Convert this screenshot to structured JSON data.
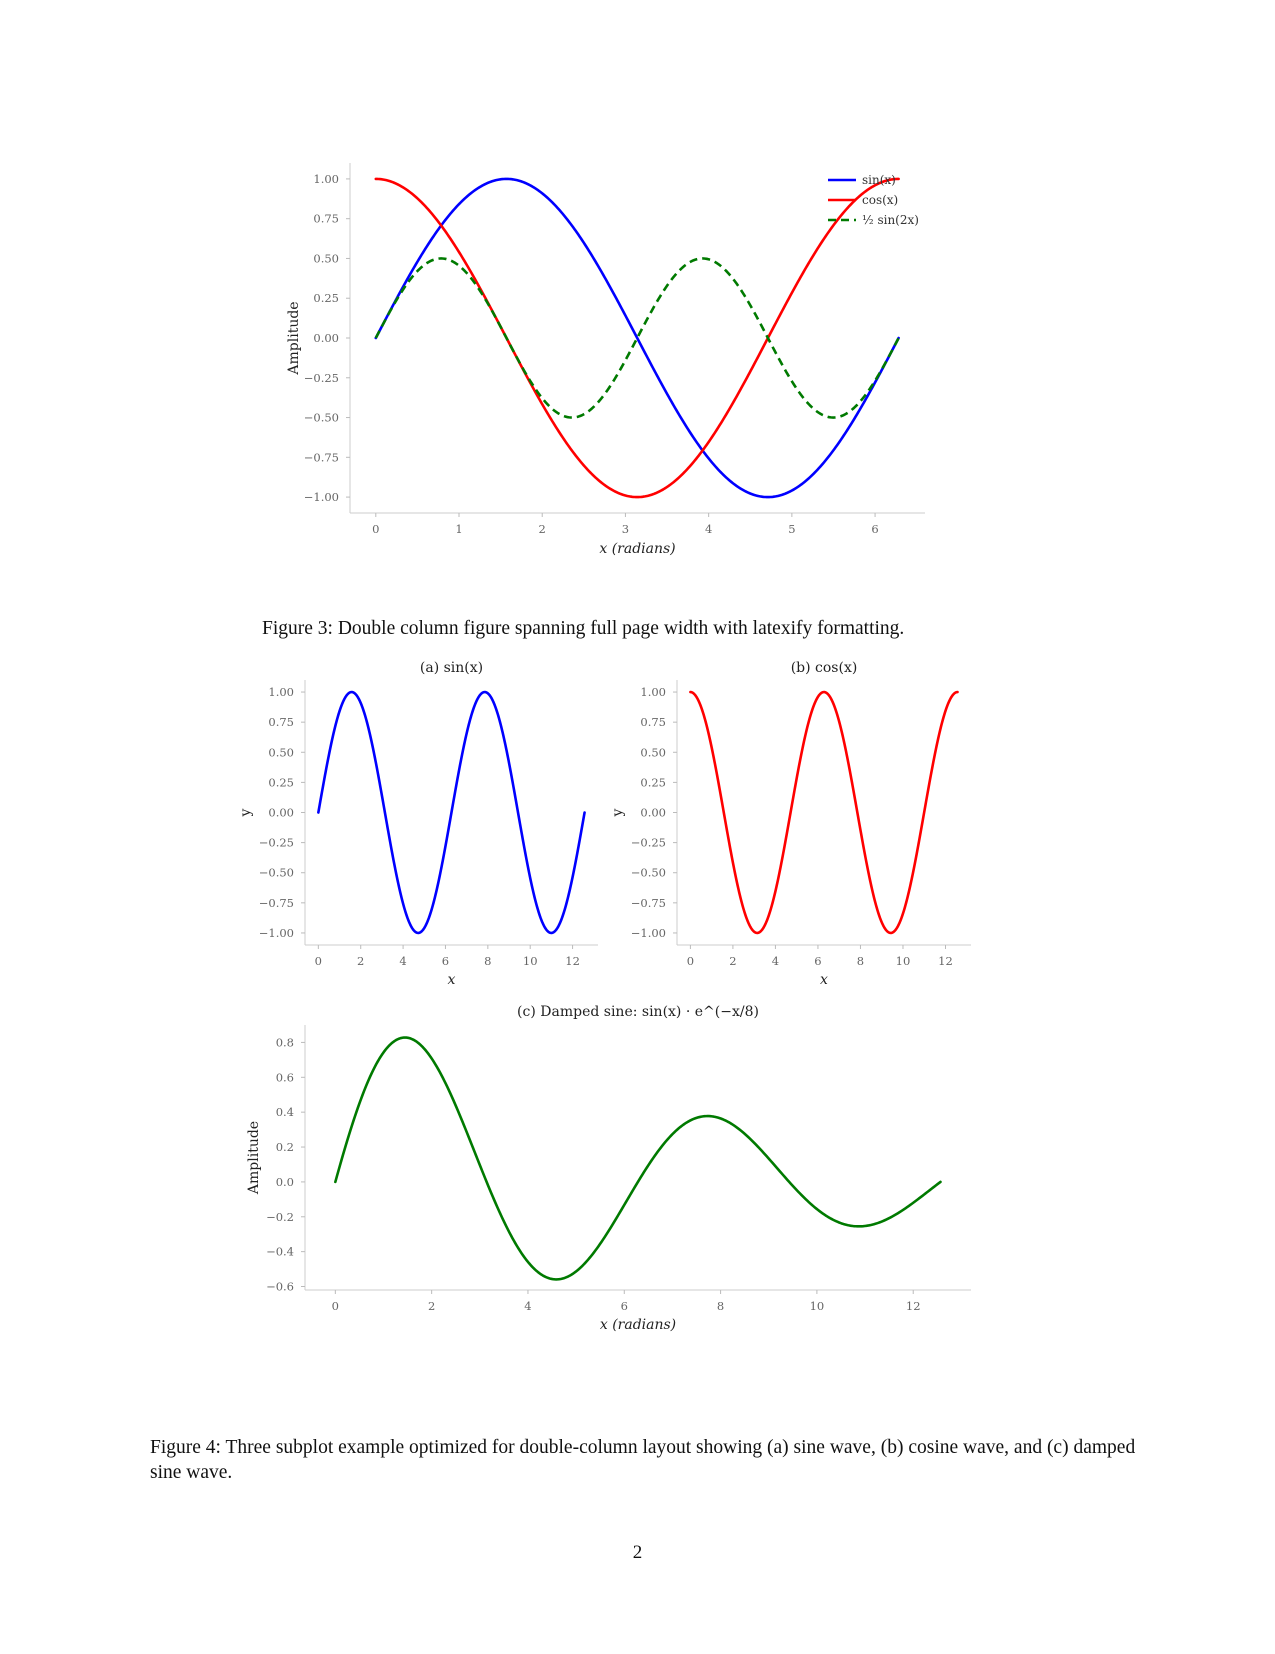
{
  "figures": [
    {
      "caption": "Figure 3: Double column figure spanning full page width with latexify formatting."
    },
    {
      "caption": "Figure 4: Three subplot example optimized for double-column layout showing (a) sine wave, (b) cosine wave, and (c) damped sine wave."
    }
  ],
  "page_number": "2",
  "chart_data": [
    {
      "type": "line",
      "title": "",
      "xlabel": "x (radians)",
      "ylabel": "Amplitude",
      "xlim": [
        -0.31,
        6.6
      ],
      "ylim": [
        -1.1,
        1.1
      ],
      "xticks": [
        "0",
        "1",
        "2",
        "3",
        "4",
        "5",
        "6"
      ],
      "yticks": [
        "−1.00",
        "−0.75",
        "−0.50",
        "−0.25",
        "0.00",
        "0.25",
        "0.50",
        "0.75",
        "1.00"
      ],
      "grid": false,
      "legend": "top-right",
      "x_range": [
        0,
        6.283
      ],
      "series": [
        {
          "name": "sin(x)",
          "expr": "sin(x)",
          "color": "#0000ff",
          "style": "solid"
        },
        {
          "name": "cos(x)",
          "expr": "cos(x)",
          "color": "#ff0000",
          "style": "solid"
        },
        {
          "name": "½ sin(2x)",
          "expr": "0.5*sin(2x)",
          "color": "#007a00",
          "style": "dashed"
        }
      ]
    },
    {
      "type": "line",
      "title": "(a) sin(x)",
      "xlabel": "x",
      "ylabel": "y",
      "xlim": [
        -0.63,
        13.2
      ],
      "ylim": [
        -1.1,
        1.1
      ],
      "xticks": [
        "0",
        "2",
        "4",
        "6",
        "8",
        "10",
        "12"
      ],
      "yticks": [
        "−1.00",
        "−0.75",
        "−0.50",
        "−0.25",
        "0.00",
        "0.25",
        "0.50",
        "0.75",
        "1.00"
      ],
      "grid": false,
      "x_range": [
        0,
        12.566
      ],
      "series": [
        {
          "expr": "sin(x)",
          "color": "#0000ff",
          "style": "solid"
        }
      ]
    },
    {
      "type": "line",
      "title": "(b) cos(x)",
      "xlabel": "x",
      "ylabel": "y",
      "xlim": [
        -0.63,
        13.2
      ],
      "ylim": [
        -1.1,
        1.1
      ],
      "xticks": [
        "0",
        "2",
        "4",
        "6",
        "8",
        "10",
        "12"
      ],
      "yticks": [
        "−1.00",
        "−0.75",
        "−0.50",
        "−0.25",
        "0.00",
        "0.25",
        "0.50",
        "0.75",
        "1.00"
      ],
      "grid": false,
      "x_range": [
        0,
        12.566
      ],
      "series": [
        {
          "expr": "cos(x)",
          "color": "#ff0000",
          "style": "solid"
        }
      ]
    },
    {
      "type": "line",
      "title": "(c) Damped sine: sin(x) · e^(−x/8)",
      "xlabel": "x (radians)",
      "ylabel": "Amplitude",
      "xlim": [
        -0.63,
        13.2
      ],
      "ylim": [
        -0.62,
        0.9
      ],
      "xticks": [
        "0",
        "2",
        "4",
        "6",
        "8",
        "10",
        "12"
      ],
      "yticks": [
        "−0.6",
        "−0.4",
        "−0.2",
        "0.0",
        "0.2",
        "0.4",
        "0.6",
        "0.8"
      ],
      "grid": false,
      "x_range": [
        0,
        12.566
      ],
      "series": [
        {
          "expr": "sin(x)*exp(-x/8)",
          "color": "#007a00",
          "style": "solid"
        }
      ]
    }
  ]
}
